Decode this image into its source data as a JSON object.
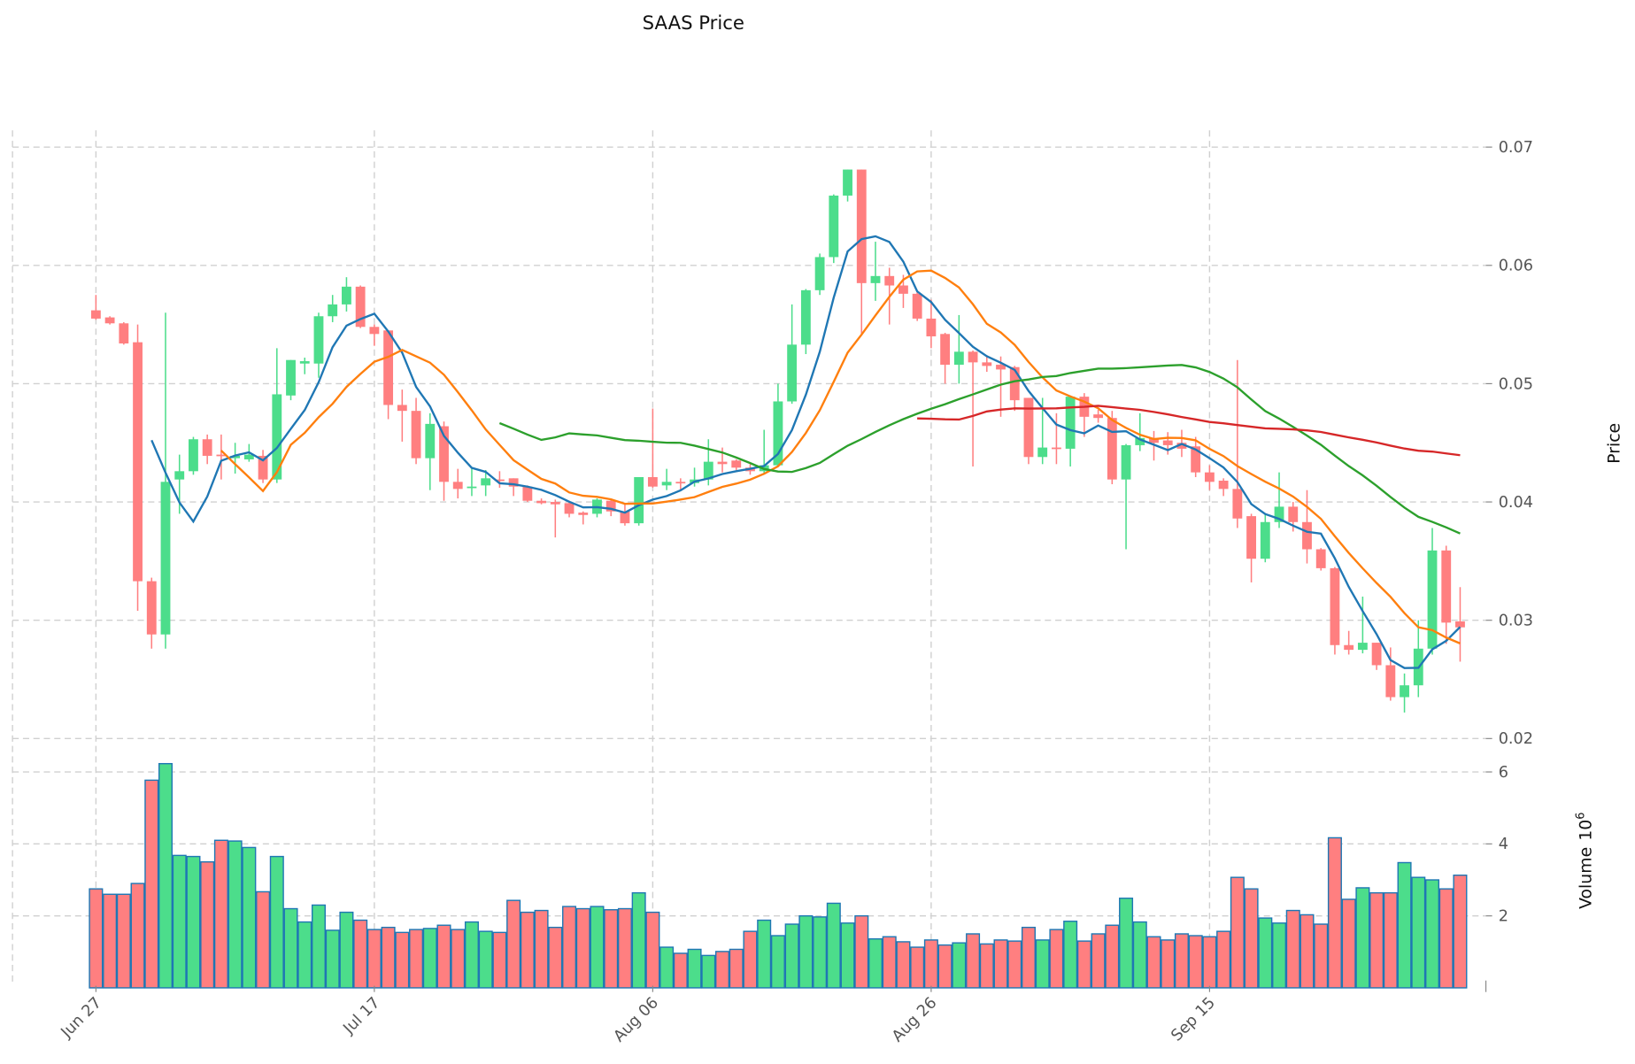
{
  "chart_data": {
    "type": "candlestick",
    "title": "SAAS Price",
    "price_axis": {
      "label": "Price",
      "ylim": [
        0.02,
        0.07
      ],
      "ticks": [
        "0.02",
        "0.03",
        "0.04",
        "0.05",
        "0.06",
        "0.07"
      ]
    },
    "volume_axis": {
      "label": "Volume",
      "multiplier": "10",
      "exponent": "6",
      "ticks": [
        "2",
        "4",
        "6"
      ]
    },
    "x_ticks": [
      {
        "index": 0,
        "label": "Jun 27"
      },
      {
        "index": 20,
        "label": "Jul 17"
      },
      {
        "index": 40,
        "label": "Aug 06"
      },
      {
        "index": 60,
        "label": "Aug 26"
      },
      {
        "index": 80,
        "label": "Sep 15"
      }
    ],
    "grid": true,
    "colors": {
      "up": "#4cdd8b",
      "down": "#ff7f80",
      "volume_edge": "#1f77b4",
      "ma5": "#1f77b4",
      "ma10": "#ff7f0e",
      "ma30": "#2ca02c",
      "ma60": "#d62728"
    },
    "moving_averages": [
      5,
      10,
      30,
      60
    ],
    "ohlc": [
      [
        0.0562,
        0.0575,
        0.0554,
        0.0555
      ],
      [
        0.0556,
        0.0557,
        0.055,
        0.0551
      ],
      [
        0.0551,
        0.0552,
        0.0533,
        0.0534
      ],
      [
        0.0535,
        0.055,
        0.0308,
        0.0333
      ],
      [
        0.0333,
        0.0336,
        0.0276,
        0.0288
      ],
      [
        0.0288,
        0.056,
        0.0276,
        0.0417
      ],
      [
        0.0419,
        0.044,
        0.039,
        0.0426
      ],
      [
        0.0426,
        0.0455,
        0.0423,
        0.0453
      ],
      [
        0.0453,
        0.0457,
        0.0432,
        0.0439
      ],
      [
        0.044,
        0.0457,
        0.0419,
        0.0439
      ],
      [
        0.0437,
        0.045,
        0.0424,
        0.0439
      ],
      [
        0.0436,
        0.0449,
        0.0434,
        0.044
      ],
      [
        0.0439,
        0.0444,
        0.0416,
        0.0419
      ],
      [
        0.0419,
        0.053,
        0.0416,
        0.0491
      ],
      [
        0.049,
        0.052,
        0.0486,
        0.052
      ],
      [
        0.0517,
        0.0522,
        0.0508,
        0.0519
      ],
      [
        0.0517,
        0.056,
        0.0505,
        0.0557
      ],
      [
        0.0557,
        0.0575,
        0.0552,
        0.0567
      ],
      [
        0.0567,
        0.059,
        0.0561,
        0.0582
      ],
      [
        0.0582,
        0.0583,
        0.0547,
        0.0548
      ],
      [
        0.0548,
        0.055,
        0.0532,
        0.0542
      ],
      [
        0.0545,
        0.0545,
        0.047,
        0.0482
      ],
      [
        0.0482,
        0.0495,
        0.0451,
        0.0477
      ],
      [
        0.0477,
        0.0488,
        0.0432,
        0.0437
      ],
      [
        0.0437,
        0.0475,
        0.041,
        0.0466
      ],
      [
        0.0464,
        0.0468,
        0.0401,
        0.0417
      ],
      [
        0.0417,
        0.0428,
        0.0403,
        0.0411
      ],
      [
        0.0412,
        0.0428,
        0.0405,
        0.0413
      ],
      [
        0.0414,
        0.0427,
        0.0405,
        0.042
      ],
      [
        0.0419,
        0.0426,
        0.0412,
        0.0418
      ],
      [
        0.042,
        0.042,
        0.0405,
        0.0413
      ],
      [
        0.0413,
        0.0414,
        0.04,
        0.0401
      ],
      [
        0.0401,
        0.0403,
        0.0398,
        0.0399
      ],
      [
        0.04,
        0.0402,
        0.037,
        0.0398
      ],
      [
        0.0399,
        0.0401,
        0.0387,
        0.039
      ],
      [
        0.0391,
        0.0392,
        0.0381,
        0.0389
      ],
      [
        0.039,
        0.0403,
        0.0387,
        0.0402
      ],
      [
        0.0401,
        0.0403,
        0.0388,
        0.0392
      ],
      [
        0.0392,
        0.0399,
        0.038,
        0.0382
      ],
      [
        0.0382,
        0.0421,
        0.038,
        0.0421
      ],
      [
        0.0421,
        0.0479,
        0.0412,
        0.0413
      ],
      [
        0.0414,
        0.0428,
        0.041,
        0.0417
      ],
      [
        0.0417,
        0.042,
        0.041,
        0.0416
      ],
      [
        0.0416,
        0.0429,
        0.0413,
        0.0419
      ],
      [
        0.0419,
        0.0453,
        0.0414,
        0.0434
      ],
      [
        0.0434,
        0.0446,
        0.0425,
        0.0432
      ],
      [
        0.0435,
        0.0436,
        0.0427,
        0.0429
      ],
      [
        0.0429,
        0.0432,
        0.0423,
        0.0426
      ],
      [
        0.0426,
        0.0461,
        0.0424,
        0.0431
      ],
      [
        0.0431,
        0.05,
        0.043,
        0.0485
      ],
      [
        0.0485,
        0.0567,
        0.0483,
        0.0533
      ],
      [
        0.0533,
        0.058,
        0.0525,
        0.0579
      ],
      [
        0.0579,
        0.061,
        0.0575,
        0.0607
      ],
      [
        0.0607,
        0.066,
        0.0602,
        0.0659
      ],
      [
        0.0659,
        0.0681,
        0.0654,
        0.0681
      ],
      [
        0.0681,
        0.0681,
        0.0542,
        0.0585
      ],
      [
        0.0585,
        0.062,
        0.057,
        0.0591
      ],
      [
        0.0591,
        0.0598,
        0.055,
        0.0583
      ],
      [
        0.0583,
        0.0592,
        0.0564,
        0.0576
      ],
      [
        0.0576,
        0.0578,
        0.0553,
        0.0555
      ],
      [
        0.0555,
        0.0571,
        0.053,
        0.054
      ],
      [
        0.0542,
        0.0543,
        0.05,
        0.0516
      ],
      [
        0.0516,
        0.0558,
        0.05,
        0.0527
      ],
      [
        0.0527,
        0.0528,
        0.043,
        0.0518
      ],
      [
        0.0518,
        0.0524,
        0.051,
        0.0515
      ],
      [
        0.0516,
        0.0523,
        0.0472,
        0.0512
      ],
      [
        0.0514,
        0.0515,
        0.0477,
        0.0486
      ],
      [
        0.0488,
        0.0488,
        0.0432,
        0.0438
      ],
      [
        0.0438,
        0.0488,
        0.0432,
        0.0446
      ],
      [
        0.0446,
        0.0475,
        0.0432,
        0.0445
      ],
      [
        0.0445,
        0.049,
        0.043,
        0.0489
      ],
      [
        0.0489,
        0.0492,
        0.0455,
        0.0472
      ],
      [
        0.0474,
        0.0478,
        0.0467,
        0.0471
      ],
      [
        0.0471,
        0.0477,
        0.0415,
        0.0419
      ],
      [
        0.0419,
        0.0449,
        0.036,
        0.0448
      ],
      [
        0.0448,
        0.0475,
        0.0443,
        0.0454
      ],
      [
        0.0454,
        0.046,
        0.0435,
        0.045
      ],
      [
        0.0452,
        0.0459,
        0.044,
        0.0448
      ],
      [
        0.045,
        0.0461,
        0.0438,
        0.0445
      ],
      [
        0.0447,
        0.0455,
        0.0421,
        0.0425
      ],
      [
        0.0425,
        0.0431,
        0.041,
        0.0417
      ],
      [
        0.0418,
        0.042,
        0.0405,
        0.0411
      ],
      [
        0.0411,
        0.052,
        0.0378,
        0.0386
      ],
      [
        0.0388,
        0.039,
        0.0332,
        0.0352
      ],
      [
        0.0352,
        0.039,
        0.0349,
        0.0383
      ],
      [
        0.0383,
        0.0425,
        0.0378,
        0.0396
      ],
      [
        0.0396,
        0.04,
        0.0375,
        0.0383
      ],
      [
        0.0383,
        0.041,
        0.0348,
        0.036
      ],
      [
        0.036,
        0.0361,
        0.0342,
        0.0344
      ],
      [
        0.0344,
        0.0345,
        0.0271,
        0.0279
      ],
      [
        0.0279,
        0.0291,
        0.0271,
        0.0275
      ],
      [
        0.0275,
        0.032,
        0.0272,
        0.0281
      ],
      [
        0.0281,
        0.0281,
        0.0258,
        0.0262
      ],
      [
        0.0262,
        0.0277,
        0.0232,
        0.0235
      ],
      [
        0.0235,
        0.0255,
        0.0222,
        0.0245
      ],
      [
        0.0245,
        0.03,
        0.0235,
        0.0276
      ],
      [
        0.0276,
        0.0378,
        0.0271,
        0.0359
      ],
      [
        0.0359,
        0.0363,
        0.028,
        0.0298
      ],
      [
        0.0299,
        0.0328,
        0.0265,
        0.0294
      ]
    ],
    "volume_millions": [
      2.75,
      2.6,
      2.6,
      2.9,
      5.77,
      6.23,
      3.68,
      3.65,
      3.5,
      4.1,
      4.08,
      3.9,
      2.67,
      3.65,
      2.2,
      1.83,
      2.3,
      1.6,
      2.1,
      1.88,
      1.62,
      1.68,
      1.54,
      1.62,
      1.65,
      1.74,
      1.62,
      1.83,
      1.57,
      1.54,
      2.43,
      2.1,
      2.15,
      1.68,
      2.26,
      2.2,
      2.26,
      2.17,
      2.2,
      2.64,
      2.1,
      1.13,
      0.96,
      1.07,
      0.9,
      1.01,
      1.07,
      1.57,
      1.88,
      1.45,
      1.77,
      2.0,
      1.97,
      2.35,
      1.8,
      2.0,
      1.36,
      1.42,
      1.28,
      1.13,
      1.33,
      1.19,
      1.25,
      1.5,
      1.22,
      1.33,
      1.3,
      1.68,
      1.33,
      1.62,
      1.85,
      1.3,
      1.5,
      1.74,
      2.49,
      1.83,
      1.42,
      1.33,
      1.5,
      1.45,
      1.42,
      1.57,
      3.07,
      2.75,
      1.94,
      1.8,
      2.15,
      2.03,
      1.77,
      4.17,
      2.46,
      2.78,
      2.64,
      2.64,
      3.48,
      3.07,
      3.0,
      2.75,
      3.13
    ]
  }
}
